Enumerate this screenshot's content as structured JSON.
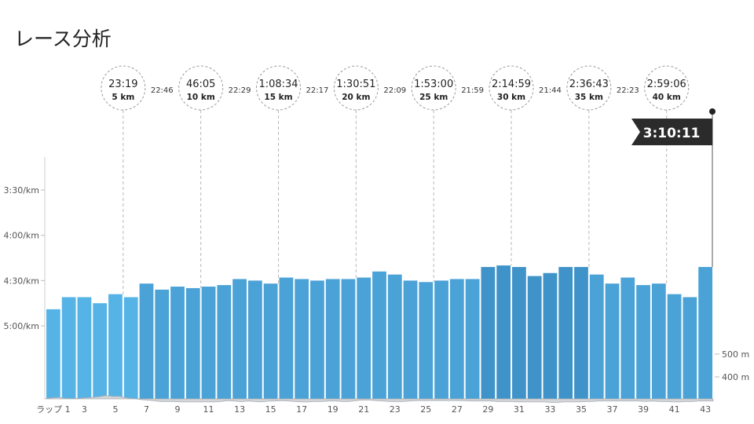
{
  "title": "レース分析",
  "chart_data": {
    "type": "bar",
    "title": "",
    "xlabel": "ラップ",
    "ylabel": "",
    "ylim_pace_sec": [
      170,
      340
    ],
    "y_ticks": [
      {
        "label": "3:30/km",
        "sec": 210
      },
      {
        "label": "4:00/km",
        "sec": 240
      },
      {
        "label": "4:30/km",
        "sec": 270
      },
      {
        "label": "5:00/km",
        "sec": 300
      }
    ],
    "x_tick_labels": [
      {
        "lap": 1,
        "label": "ラップ 1"
      },
      {
        "lap": 3,
        "label": "3"
      },
      {
        "lap": 5,
        "label": "5"
      },
      {
        "lap": 7,
        "label": "7"
      },
      {
        "lap": 9,
        "label": "9"
      },
      {
        "lap": 11,
        "label": "11"
      },
      {
        "lap": 13,
        "label": "13"
      },
      {
        "lap": 15,
        "label": "15"
      },
      {
        "lap": 17,
        "label": "17"
      },
      {
        "lap": 19,
        "label": "19"
      },
      {
        "lap": 21,
        "label": "21"
      },
      {
        "lap": 23,
        "label": "23"
      },
      {
        "lap": 25,
        "label": "25"
      },
      {
        "lap": 27,
        "label": "27"
      },
      {
        "lap": 29,
        "label": "29"
      },
      {
        "lap": 31,
        "label": "31"
      },
      {
        "lap": 33,
        "label": "33"
      },
      {
        "lap": 35,
        "label": "35"
      },
      {
        "lap": 37,
        "label": "37"
      },
      {
        "lap": 39,
        "label": "39"
      },
      {
        "lap": 41,
        "label": "41"
      },
      {
        "lap": 43,
        "label": "43"
      }
    ],
    "laps": [
      1,
      2,
      3,
      4,
      5,
      6,
      7,
      8,
      9,
      10,
      11,
      12,
      13,
      14,
      15,
      16,
      17,
      18,
      19,
      20,
      21,
      22,
      23,
      24,
      25,
      26,
      27,
      28,
      29,
      30,
      31,
      32,
      33,
      34,
      35,
      36,
      37,
      38,
      39,
      40,
      41,
      42,
      43
    ],
    "pace_sec_per_km": [
      289,
      281,
      281,
      285,
      279,
      281,
      272,
      276,
      274,
      275,
      274,
      273,
      269,
      270,
      272,
      268,
      269,
      270,
      269,
      269,
      268,
      264,
      266,
      270,
      271,
      270,
      269,
      269,
      261,
      260,
      261,
      267,
      265,
      261,
      261,
      266,
      272,
      268,
      273,
      272,
      279,
      281,
      261
    ],
    "elevation": {
      "right_axis_labels": [
        {
          "label": "500 m",
          "value": 500
        },
        {
          "label": "400 m",
          "value": 400
        }
      ],
      "values_m": [
        305,
        308,
        310,
        306,
        304,
        306,
        308,
        310,
        313,
        318,
        314,
        314,
        308,
        305,
        301,
        298,
        295,
        292,
        292,
        292,
        290,
        290,
        290,
        290,
        290,
        290,
        292,
        296,
        294,
        291,
        294,
        292,
        290,
        293,
        294,
        296,
        294,
        292,
        290,
        290,
        292,
        292,
        294,
        294,
        292,
        292,
        295,
        299,
        298,
        296,
        294,
        292,
        292,
        292,
        294,
        296,
        296,
        296,
        296,
        296,
        296,
        296,
        296,
        294,
        294,
        294,
        294,
        292,
        292,
        292,
        290,
        290,
        290,
        290,
        290,
        288,
        288,
        290,
        290,
        290,
        292,
        292,
        294,
        294,
        294,
        294,
        294,
        294,
        294,
        292,
        294,
        292,
        292,
        290,
        290,
        292,
        292,
        294,
        294,
        294
      ],
      "range_m": [
        260,
        620
      ]
    },
    "splits": [
      {
        "time": "23:19",
        "dist": "5 km",
        "lap": 5,
        "gap_after": "22:46"
      },
      {
        "time": "46:05",
        "dist": "10 km",
        "lap": 10,
        "gap_after": "22:29"
      },
      {
        "time": "1:08:34",
        "dist": "15 km",
        "lap": 15,
        "gap_after": "22:17"
      },
      {
        "time": "1:30:51",
        "dist": "20 km",
        "lap": 20,
        "gap_after": "22:09"
      },
      {
        "time": "1:53:00",
        "dist": "25 km",
        "lap": 25,
        "gap_after": "21:59"
      },
      {
        "time": "2:14:59",
        "dist": "30 km",
        "lap": 30,
        "gap_after": "21:44"
      },
      {
        "time": "2:36:43",
        "dist": "35 km",
        "lap": 35,
        "gap_after": "22:23"
      },
      {
        "time": "2:59:06",
        "dist": "40 km",
        "lap": 40,
        "gap_after": ""
      }
    ],
    "finish_time": "3:10:11",
    "colors": {
      "bar_light": "#56b3e6",
      "bar_mid": "#4ba2d6",
      "bar_dark": "#3f93c8",
      "elevation_fill": "#d3d5d8",
      "elevation_line": "#a9adb2",
      "flag": "#2b2b2b",
      "guide": "#b9b9b9"
    }
  }
}
